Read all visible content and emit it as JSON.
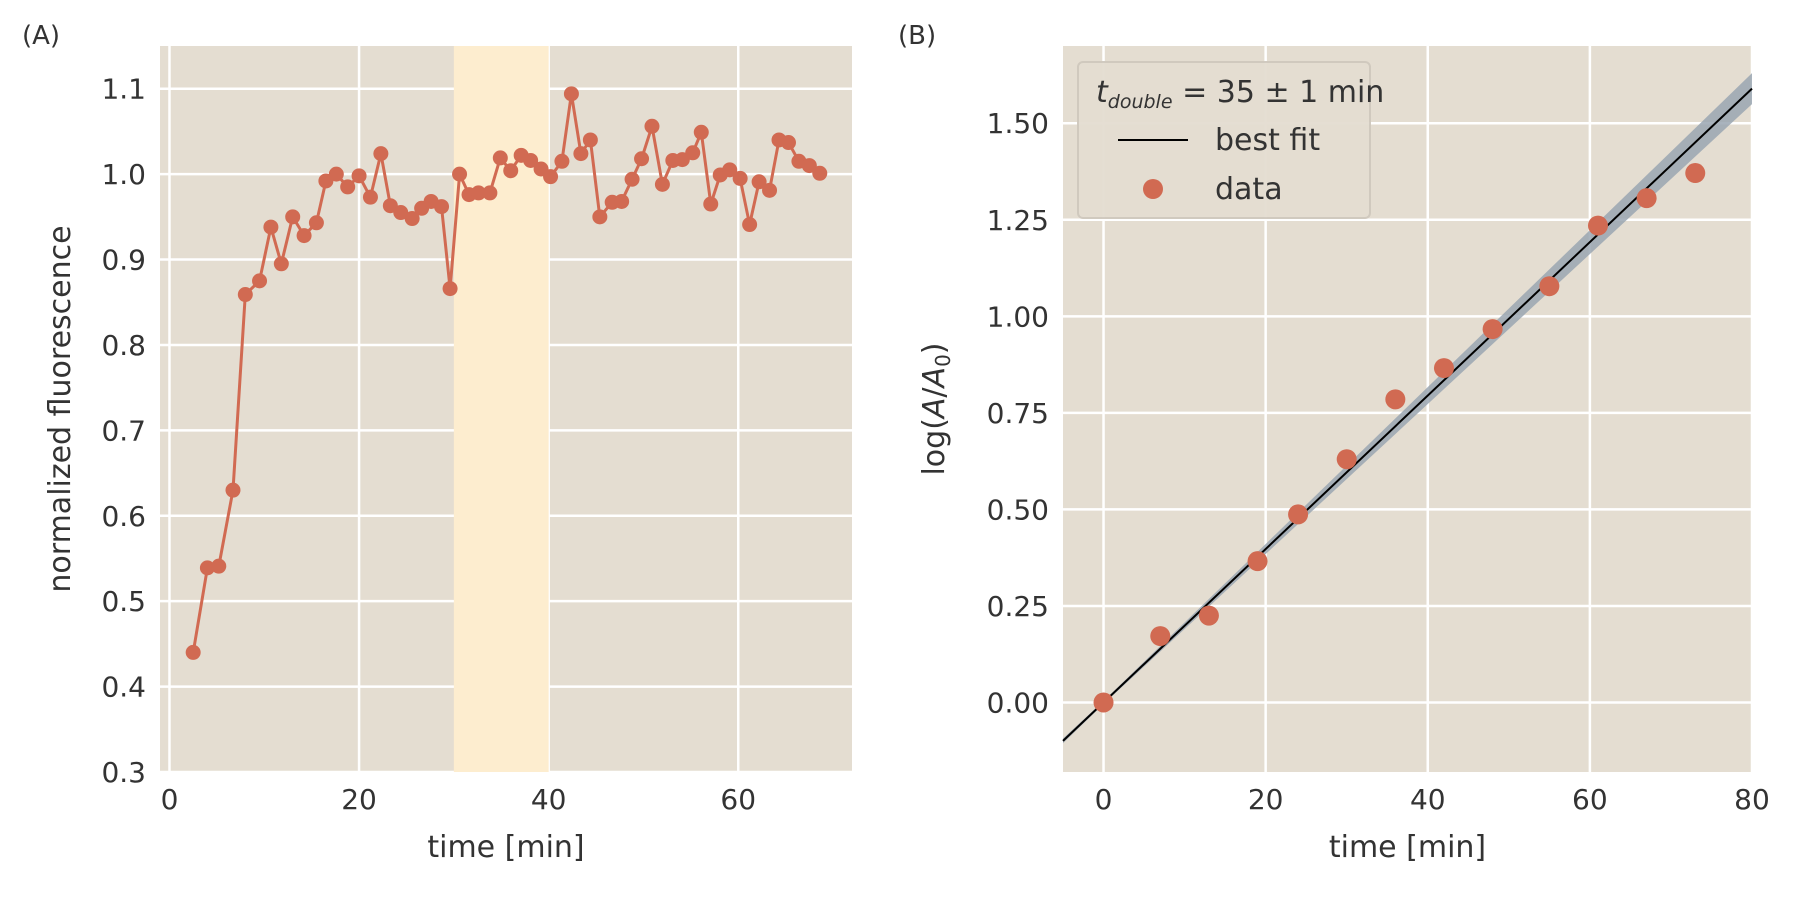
{
  "colors": {
    "axes_background": "#e4ddd1",
    "grid": "#ffffff",
    "series": "#d16a52",
    "highlight": "#fdedcf",
    "fit_line": "#000000",
    "confidence_band": "#9aa6b2",
    "text": "#333333"
  },
  "chart_data": [
    {
      "type": "line",
      "panel_label": "(A)",
      "xlabel": "time [min]",
      "ylabel": "normalized fluorescence",
      "xlim": [
        -1,
        72
      ],
      "ylim": [
        0.3,
        1.15
      ],
      "xticks": [
        0,
        20,
        40,
        60
      ],
      "xtick_labels": [
        "0",
        "20",
        "40",
        "60"
      ],
      "yticks": [
        0.3,
        0.4,
        0.5,
        0.6,
        0.7,
        0.8,
        0.9,
        1.0,
        1.1
      ],
      "ytick_labels": [
        "0.3",
        "0.4",
        "0.5",
        "0.6",
        "0.7",
        "0.8",
        "0.9",
        "1.0",
        "1.1"
      ],
      "grid": true,
      "highlight_span": [
        30,
        40
      ],
      "series": [
        {
          "marker": "circle",
          "x": [
            2.5,
            4.0,
            5.2,
            6.7,
            8.0,
            9.5,
            10.7,
            11.8,
            13.0,
            14.2,
            15.5,
            16.5,
            17.6,
            18.8,
            20.0,
            21.2,
            22.3,
            23.3,
            24.4,
            25.6,
            26.6,
            27.6,
            28.7,
            29.6,
            30.6,
            31.6,
            32.6,
            33.8,
            34.9,
            36.0,
            37.1,
            38.1,
            39.2,
            40.2,
            41.4,
            42.4,
            43.4,
            44.4,
            45.4,
            46.7,
            47.7,
            48.8,
            49.8,
            50.9,
            52.0,
            53.1,
            54.1,
            55.2,
            56.1,
            57.1,
            58.1,
            59.1,
            60.2,
            61.2,
            62.2,
            63.3,
            64.3,
            65.3,
            66.4,
            67.5,
            68.6
          ],
          "y": [
            0.44,
            0.539,
            0.541,
            0.63,
            0.859,
            0.875,
            0.938,
            0.895,
            0.95,
            0.928,
            0.943,
            0.992,
            1.0,
            0.985,
            0.998,
            0.973,
            1.024,
            0.963,
            0.955,
            0.948,
            0.96,
            0.968,
            0.962,
            0.866,
            1.0,
            0.976,
            0.978,
            0.978,
            1.019,
            1.004,
            1.022,
            1.016,
            1.006,
            0.997,
            1.015,
            1.094,
            1.024,
            1.04,
            0.95,
            0.967,
            0.968,
            0.994,
            1.018,
            1.056,
            0.988,
            1.016,
            1.017,
            1.025,
            1.049,
            0.965,
            0.999,
            1.005,
            0.995,
            0.941,
            0.991,
            0.981,
            1.04,
            1.037,
            1.015,
            1.01,
            1.001
          ]
        }
      ]
    },
    {
      "type": "scatter",
      "panel_label": "(B)",
      "xlabel": "time [min]",
      "ylabel": "log(A/A₀)",
      "ylabel_parts": {
        "prefix": "log(",
        "var1": "A",
        "slash": "/",
        "var2": "A",
        "sub": "0",
        "suffix": ")"
      },
      "xlim": [
        -5,
        80
      ],
      "ylim": [
        -0.18,
        1.7
      ],
      "xticks": [
        0,
        20,
        40,
        60,
        80
      ],
      "xtick_labels": [
        "0",
        "20",
        "40",
        "60",
        "80"
      ],
      "yticks": [
        0.0,
        0.25,
        0.5,
        0.75,
        1.0,
        1.25,
        1.5
      ],
      "ytick_labels": [
        "0.00",
        "0.25",
        "0.50",
        "0.75",
        "1.00",
        "1.25",
        "1.50"
      ],
      "grid": true,
      "legend_location": "top-left",
      "legend": {
        "annotation": {
          "var": "t",
          "sub": "double",
          "rest": " = 35 ± 1 min"
        },
        "fit_label": "best fit",
        "data_label": "data"
      },
      "fit": {
        "slope": 0.01987,
        "intercept": 0.0,
        "band_halfwidth_slope": 0.00045
      },
      "series": [
        {
          "name": "data",
          "marker": "circle",
          "x": [
            0,
            7,
            13,
            19,
            24,
            30,
            36,
            42,
            48,
            55,
            61,
            67,
            73
          ],
          "y": [
            0.0,
            0.172,
            0.225,
            0.366,
            0.487,
            0.63,
            0.785,
            0.866,
            0.967,
            1.078,
            1.235,
            1.306,
            1.371
          ]
        },
        {
          "name": "best fit",
          "type": "line"
        }
      ]
    }
  ]
}
